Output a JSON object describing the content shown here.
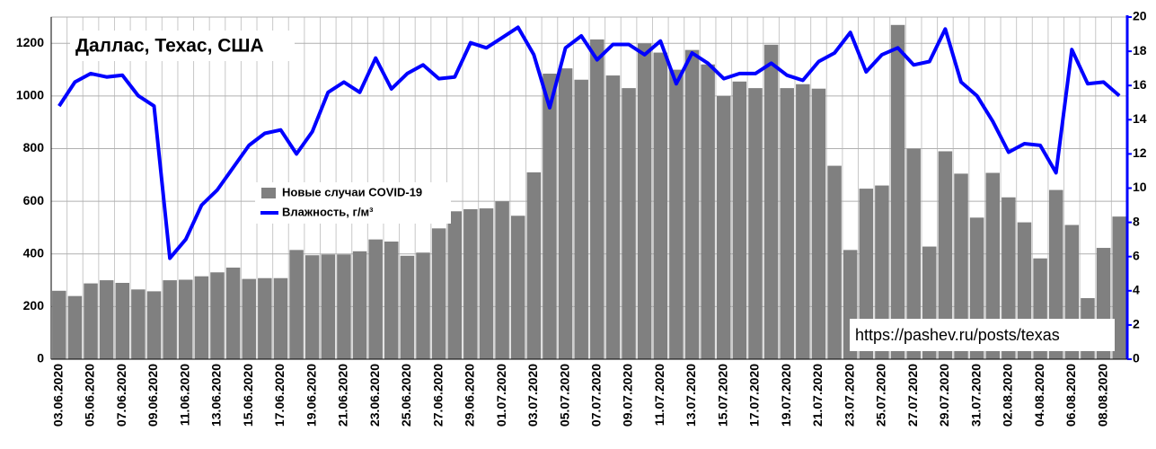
{
  "chart_data": {
    "type": "bar_line",
    "title": "Даллас, Техас, США",
    "annotation": "https://pashev.ru/posts/texas",
    "categories": [
      "03.06.2020",
      null,
      "05.06.2020",
      null,
      "07.06.2020",
      null,
      "09.06.2020",
      null,
      "11.06.2020",
      null,
      "13.06.2020",
      null,
      "15.06.2020",
      null,
      "17.06.2020",
      null,
      "19.06.2020",
      null,
      "21.06.2020",
      null,
      "23.06.2020",
      null,
      "25.06.2020",
      null,
      "27.06.2020",
      null,
      "29.06.2020",
      null,
      "01.07.2020",
      null,
      "03.07.2020",
      null,
      "05.07.2020",
      null,
      "07.07.2020",
      null,
      "09.07.2020",
      null,
      "11.07.2020",
      null,
      "13.07.2020",
      null,
      "15.07.2020",
      null,
      "17.07.2020",
      null,
      "19.07.2020",
      null,
      "21.07.2020",
      null,
      "23.07.2020",
      null,
      "25.07.2020",
      null,
      "27.07.2020",
      null,
      "29.07.2020",
      null,
      "31.07.2020",
      null,
      "02.08.2020",
      null,
      "04.08.2020",
      null,
      "06.08.2020",
      null,
      "08.08.2020",
      null
    ],
    "series": [
      {
        "name": "Новые случаи COVID-19",
        "color": "#808080",
        "axis": "y",
        "values": [
          260,
          240,
          288,
          300,
          290,
          265,
          258,
          300,
          302,
          315,
          330,
          348,
          305,
          308,
          308,
          415,
          395,
          398,
          398,
          410,
          455,
          447,
          393,
          405,
          497,
          562,
          570,
          573,
          600,
          545,
          710,
          1085,
          1105,
          1062,
          1215,
          1078,
          1030,
          1200,
          1165,
          1100,
          1175,
          1120,
          1000,
          1055,
          1030,
          1195,
          1030,
          1045,
          1028,
          735,
          415,
          648,
          660,
          1270,
          800,
          428,
          790,
          705,
          538,
          708,
          615,
          520,
          383,
          643,
          510,
          232,
          423,
          542
        ]
      },
      {
        "name": "Влажность, г/м³",
        "color": "#0000ff",
        "axis": "y2",
        "values": [
          14.8,
          16.2,
          16.7,
          16.5,
          16.6,
          15.4,
          14.8,
          5.9,
          7.0,
          9.0,
          9.9,
          11.2,
          12.5,
          13.2,
          13.4,
          12.0,
          13.3,
          15.6,
          16.2,
          15.6,
          17.6,
          15.8,
          16.7,
          17.2,
          16.4,
          16.5,
          18.5,
          18.2,
          18.8,
          19.4,
          17.8,
          14.7,
          18.2,
          18.9,
          17.5,
          18.4,
          18.4,
          17.8,
          18.6,
          16.1,
          17.9,
          17.3,
          16.4,
          16.7,
          16.7,
          17.3,
          16.6,
          16.3,
          17.4,
          17.9,
          19.1,
          16.8,
          17.8,
          18.2,
          17.2,
          17.4,
          19.3,
          16.2,
          15.4,
          13.9,
          12.1,
          12.6,
          12.5,
          10.9,
          18.1,
          16.1,
          16.2,
          15.4
        ]
      }
    ],
    "ylim": [
      0,
      1300
    ],
    "yticks": [
      0,
      200,
      400,
      600,
      800,
      1000,
      1200
    ],
    "y2lim": [
      0,
      20
    ],
    "y2ticks": [
      0,
      2,
      4,
      6,
      8,
      10,
      12,
      14,
      16,
      18,
      20
    ],
    "grid": true
  }
}
